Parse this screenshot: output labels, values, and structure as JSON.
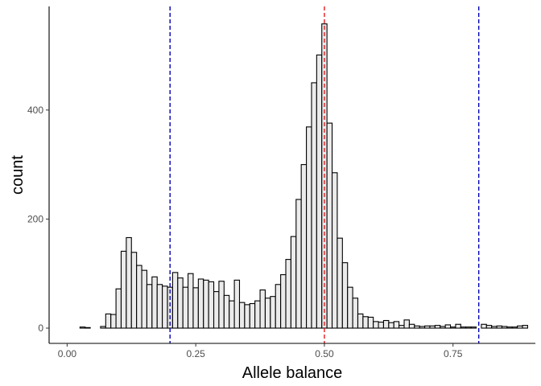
{
  "chart_data": {
    "type": "bar",
    "subtype": "histogram",
    "title": "",
    "xlabel": "Allele balance",
    "ylabel": "count",
    "xlim": [
      -0.035,
      0.91
    ],
    "ylim": [
      -28,
      590
    ],
    "x_ticks": [
      0.0,
      0.25,
      0.5,
      0.75
    ],
    "x_tick_labels": [
      "0.00",
      "0.25",
      "0.50",
      "0.75"
    ],
    "y_ticks": [
      0,
      200,
      400
    ],
    "y_tick_labels": [
      "0",
      "200",
      "400"
    ],
    "grid": false,
    "bar_fill": "#ebebeb",
    "bar_outline": "#000000",
    "bin_width": 0.01,
    "bins_start": [
      0.005,
      0.015,
      0.025,
      0.035,
      0.045,
      0.055,
      0.065,
      0.075,
      0.085,
      0.095,
      0.105,
      0.115,
      0.125,
      0.135,
      0.145,
      0.155,
      0.165,
      0.175,
      0.185,
      0.195,
      0.205,
      0.215,
      0.225,
      0.235,
      0.245,
      0.255,
      0.265,
      0.275,
      0.285,
      0.295,
      0.305,
      0.315,
      0.325,
      0.335,
      0.345,
      0.355,
      0.365,
      0.375,
      0.385,
      0.395,
      0.405,
      0.415,
      0.425,
      0.435,
      0.445,
      0.455,
      0.465,
      0.475,
      0.485,
      0.495,
      0.505,
      0.515,
      0.525,
      0.535,
      0.545,
      0.555,
      0.565,
      0.575,
      0.585,
      0.595,
      0.605,
      0.615,
      0.625,
      0.635,
      0.645,
      0.655,
      0.665,
      0.675,
      0.685,
      0.695,
      0.705,
      0.715,
      0.725,
      0.735,
      0.745,
      0.755,
      0.765,
      0.775,
      0.785,
      0.795,
      0.805,
      0.815,
      0.825,
      0.835,
      0.845,
      0.855,
      0.865,
      0.875,
      0.885
    ],
    "counts": [
      0,
      0,
      2,
      1,
      0,
      0,
      3,
      26,
      25,
      72,
      141,
      166,
      139,
      115,
      106,
      80,
      94,
      80,
      77,
      75,
      102,
      92,
      75,
      100,
      74,
      90,
      88,
      85,
      67,
      86,
      60,
      50,
      88,
      47,
      43,
      45,
      50,
      70,
      55,
      58,
      80,
      98,
      126,
      168,
      236,
      300,
      369,
      450,
      501,
      558,
      376,
      285,
      165,
      120,
      75,
      55,
      26,
      21,
      20,
      12,
      11,
      14,
      10,
      12,
      5,
      15,
      7,
      4,
      3,
      4,
      4,
      5,
      3,
      6,
      2,
      7,
      2,
      2,
      2,
      0,
      7,
      5,
      3,
      4,
      3,
      2,
      2,
      4,
      5
    ],
    "reference_lines": [
      {
        "axis": "x",
        "value": 0.2,
        "color": "#0000b3",
        "style": "dashed"
      },
      {
        "axis": "x",
        "value": 0.5,
        "color": "#e41a1c",
        "style": "dashed"
      },
      {
        "axis": "x",
        "value": 0.8,
        "color": "#0000b3",
        "style": "dashed"
      }
    ]
  }
}
